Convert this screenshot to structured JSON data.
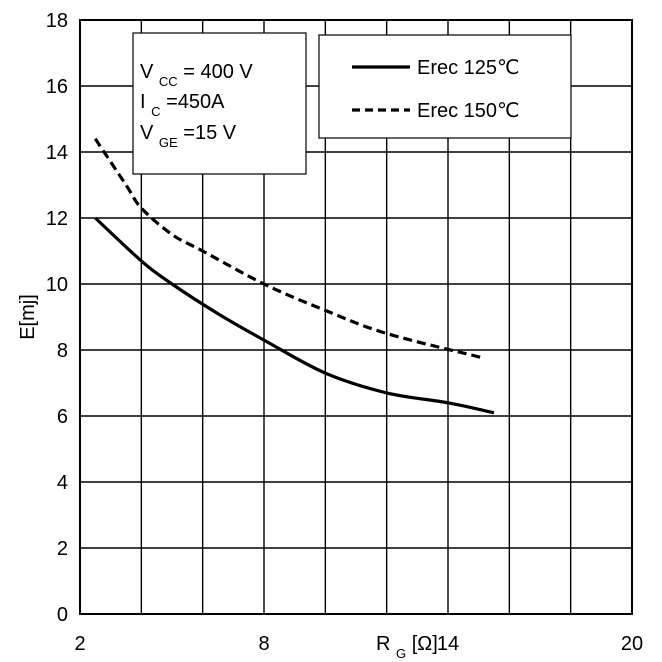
{
  "chart_data": {
    "type": "line",
    "title": "",
    "xlabel": {
      "main": "R",
      "sub": "G",
      "rest": "[Ω]"
    },
    "ylabel": "E[mj]",
    "xlim": [
      2,
      20
    ],
    "ylim": [
      0,
      18
    ],
    "x_tick_labels": [
      "2",
      "8",
      "14",
      "20"
    ],
    "y_tick_labels": [
      "0",
      "2",
      "4",
      "6",
      "8",
      "10",
      "12",
      "14",
      "16",
      "18"
    ],
    "grid": true,
    "legend_position": "top-right",
    "conditions": [
      {
        "main": "V",
        "sub": "CC",
        "rest": " = 400 V"
      },
      {
        "main": "I",
        "sub": "C",
        "rest": " =450A"
      },
      {
        "main": "V",
        "sub": "GE",
        "rest": " =15 V"
      }
    ],
    "series": [
      {
        "name": "Erec 125℃",
        "style": "solid",
        "color": "#000000",
        "x": [
          2.5,
          4,
          5,
          6.5,
          8,
          10,
          12,
          14,
          15.5
        ],
        "y": [
          12.0,
          10.7,
          10.0,
          9.1,
          8.3,
          7.3,
          6.7,
          6.4,
          6.1
        ]
      },
      {
        "name": "Erec 150℃",
        "style": "dashed",
        "color": "#000000",
        "x": [
          2.5,
          3.5,
          4,
          5,
          6,
          8,
          10,
          12,
          15.2
        ],
        "y": [
          14.4,
          13.0,
          12.3,
          11.5,
          11.0,
          10.0,
          9.2,
          8.5,
          7.75
        ]
      }
    ]
  }
}
